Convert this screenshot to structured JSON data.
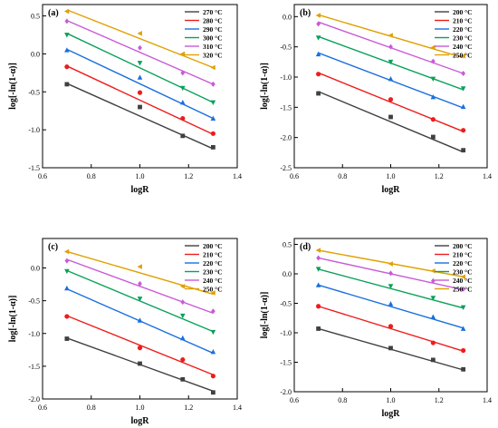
{
  "chart_data": [
    {
      "type": "scatter",
      "panel_label": "(a)",
      "xlabel": "logR",
      "ylabel": "log[-ln(1-α)]",
      "xlim": [
        0.6,
        1.4
      ],
      "ylim": [
        -1.5,
        0.65
      ],
      "xticks": [
        "0.6",
        "0.8",
        "1.0",
        "1.2",
        "1.4"
      ],
      "yticks": [
        "-1.5",
        "-1.0",
        "-0.5",
        "0.0",
        "0.5"
      ],
      "x": [
        0.7,
        1.0,
        1.176,
        1.301
      ],
      "legend_position": "top-right",
      "series": [
        {
          "name": "270 °C",
          "color": "#404040",
          "marker": "square",
          "values": [
            -0.4,
            -0.7,
            -1.08,
            -1.23
          ],
          "fit": [
            -0.39,
            -1.25
          ]
        },
        {
          "name": "280 °C",
          "color": "#ee1c1c",
          "marker": "circle",
          "values": [
            -0.17,
            -0.51,
            -0.85,
            -1.05
          ],
          "fit": [
            -0.16,
            -1.06
          ]
        },
        {
          "name": "290 °C",
          "color": "#1a6fe0",
          "marker": "triangle",
          "values": [
            0.05,
            -0.31,
            -0.64,
            -0.85
          ],
          "fit": [
            0.06,
            -0.85
          ]
        },
        {
          "name": "300 °C",
          "color": "#0aa05a",
          "marker": "tri-down",
          "values": [
            0.25,
            -0.12,
            -0.45,
            -0.64
          ],
          "fit": [
            0.27,
            -0.64
          ]
        },
        {
          "name": "310 °C",
          "color": "#c85ad7",
          "marker": "diamond",
          "values": [
            0.43,
            0.08,
            -0.25,
            -0.4
          ],
          "fit": [
            0.44,
            -0.4
          ]
        },
        {
          "name": "320 °C",
          "color": "#e0a000",
          "marker": "tri-left",
          "values": [
            0.56,
            0.27,
            0.0,
            -0.18
          ],
          "fit": [
            0.58,
            -0.18
          ]
        }
      ]
    },
    {
      "type": "scatter",
      "panel_label": "(b)",
      "xlabel": "logR",
      "ylabel": "log[-ln(1-α)]",
      "xlim": [
        0.6,
        1.4
      ],
      "ylim": [
        -2.5,
        0.2
      ],
      "xticks": [
        "0.6",
        "0.8",
        "1.0",
        "1.2",
        "1.4"
      ],
      "yticks": [
        "-2.5",
        "-2.0",
        "-1.5",
        "-1.0",
        "-0.5",
        "0.0"
      ],
      "x": [
        0.7,
        1.0,
        1.176,
        1.301
      ],
      "legend_position": "top-right",
      "series": [
        {
          "name": "200 °C",
          "color": "#404040",
          "marker": "square",
          "values": [
            -1.27,
            -1.66,
            -1.99,
            -2.21
          ],
          "fit": [
            -1.24,
            -2.24
          ]
        },
        {
          "name": "210 °C",
          "color": "#ee1c1c",
          "marker": "circle",
          "values": [
            -0.95,
            -1.37,
            -1.7,
            -1.88
          ],
          "fit": [
            -0.93,
            -1.9
          ]
        },
        {
          "name": "220 °C",
          "color": "#1a6fe0",
          "marker": "triangle",
          "values": [
            -0.62,
            -1.03,
            -1.33,
            -1.49
          ],
          "fit": [
            -0.6,
            -1.51
          ]
        },
        {
          "name": "230 °C",
          "color": "#0aa05a",
          "marker": "tri-down",
          "values": [
            -0.35,
            -0.75,
            -1.03,
            -1.19
          ],
          "fit": [
            -0.33,
            -1.21
          ]
        },
        {
          "name": "240 °C",
          "color": "#c85ad7",
          "marker": "diamond",
          "values": [
            -0.12,
            -0.5,
            -0.74,
            -0.94
          ],
          "fit": [
            -0.09,
            -0.94
          ]
        },
        {
          "name": "250 °C",
          "color": "#e0a000",
          "marker": "tri-left",
          "values": [
            0.02,
            -0.31,
            -0.51,
            -0.65
          ],
          "fit": [
            0.03,
            -0.68
          ]
        }
      ]
    },
    {
      "type": "scatter",
      "panel_label": "(c)",
      "xlabel": "logR",
      "ylabel": "log[-ln(1-α)]",
      "xlim": [
        0.6,
        1.4
      ],
      "ylim": [
        -2.0,
        0.45
      ],
      "xticks": [
        "0.6",
        "0.8",
        "1.0",
        "1.2",
        "1.4"
      ],
      "yticks": [
        "-2.0",
        "-1.5",
        "-1.0",
        "-0.5",
        "0.0"
      ],
      "x": [
        0.7,
        1.0,
        1.176,
        1.301
      ],
      "legend_position": "top-right",
      "series": [
        {
          "name": "200 °C",
          "color": "#404040",
          "marker": "square",
          "values": [
            -1.08,
            -1.46,
            -1.7,
            -1.9
          ],
          "fit": [
            -1.07,
            -1.88
          ]
        },
        {
          "name": "210 °C",
          "color": "#ee1c1c",
          "marker": "circle",
          "values": [
            -0.74,
            -1.22,
            -1.4,
            -1.65
          ],
          "fit": [
            -0.73,
            -1.63
          ]
        },
        {
          "name": "220 °C",
          "color": "#1a6fe0",
          "marker": "triangle",
          "values": [
            -0.31,
            -0.8,
            -1.07,
            -1.28
          ],
          "fit": [
            -0.32,
            -1.3
          ]
        },
        {
          "name": "230 °C",
          "color": "#0aa05a",
          "marker": "tri-down",
          "values": [
            -0.05,
            -0.47,
            -0.73,
            -0.98
          ],
          "fit": [
            -0.04,
            -0.97
          ]
        },
        {
          "name": "240 °C",
          "color": "#c85ad7",
          "marker": "diamond",
          "values": [
            0.11,
            -0.24,
            -0.52,
            -0.66
          ],
          "fit": [
            0.13,
            -0.69
          ]
        },
        {
          "name": "250 °C",
          "color": "#e0a000",
          "marker": "tri-left",
          "values": [
            0.25,
            0.02,
            -0.28,
            -0.38
          ],
          "fit": [
            0.25,
            -0.4
          ]
        }
      ]
    },
    {
      "type": "scatter",
      "panel_label": "(d)",
      "xlabel": "logR",
      "ylabel": "log[-ln(1-α)]",
      "xlim": [
        0.6,
        1.4
      ],
      "ylim": [
        -2.0,
        0.6
      ],
      "xticks": [
        "0.6",
        "0.8",
        "1.0",
        "1.2",
        "1.4"
      ],
      "yticks": [
        "-2.0",
        "-1.5",
        "-1.0",
        "-0.5",
        "0.0",
        "0.5"
      ],
      "x": [
        0.7,
        1.0,
        1.176,
        1.301
      ],
      "legend_position": "top-right",
      "series": [
        {
          "name": "200 °C",
          "color": "#404040",
          "marker": "square",
          "values": [
            -0.93,
            -1.26,
            -1.46,
            -1.62
          ],
          "fit": [
            -0.93,
            -1.63
          ]
        },
        {
          "name": "210 °C",
          "color": "#ee1c1c",
          "marker": "circle",
          "values": [
            -0.55,
            -0.89,
            -1.17,
            -1.3
          ],
          "fit": [
            -0.55,
            -1.31
          ]
        },
        {
          "name": "220 °C",
          "color": "#1a6fe0",
          "marker": "triangle",
          "values": [
            -0.19,
            -0.51,
            -0.73,
            -0.93
          ],
          "fit": [
            -0.19,
            -0.92
          ]
        },
        {
          "name": "230 °C",
          "color": "#0aa05a",
          "marker": "tri-down",
          "values": [
            0.08,
            -0.21,
            -0.41,
            -0.57
          ],
          "fit": [
            0.08,
            -0.58
          ]
        },
        {
          "name": "240 °C",
          "color": "#c85ad7",
          "marker": "diamond",
          "values": [
            0.27,
            0.01,
            -0.12,
            -0.26
          ],
          "fit": [
            0.27,
            -0.27
          ]
        },
        {
          "name": "250 °C",
          "color": "#e0a000",
          "marker": "tri-left",
          "values": [
            0.4,
            0.17,
            0.05,
            -0.05
          ],
          "fit": [
            0.4,
            -0.05
          ]
        }
      ]
    }
  ]
}
